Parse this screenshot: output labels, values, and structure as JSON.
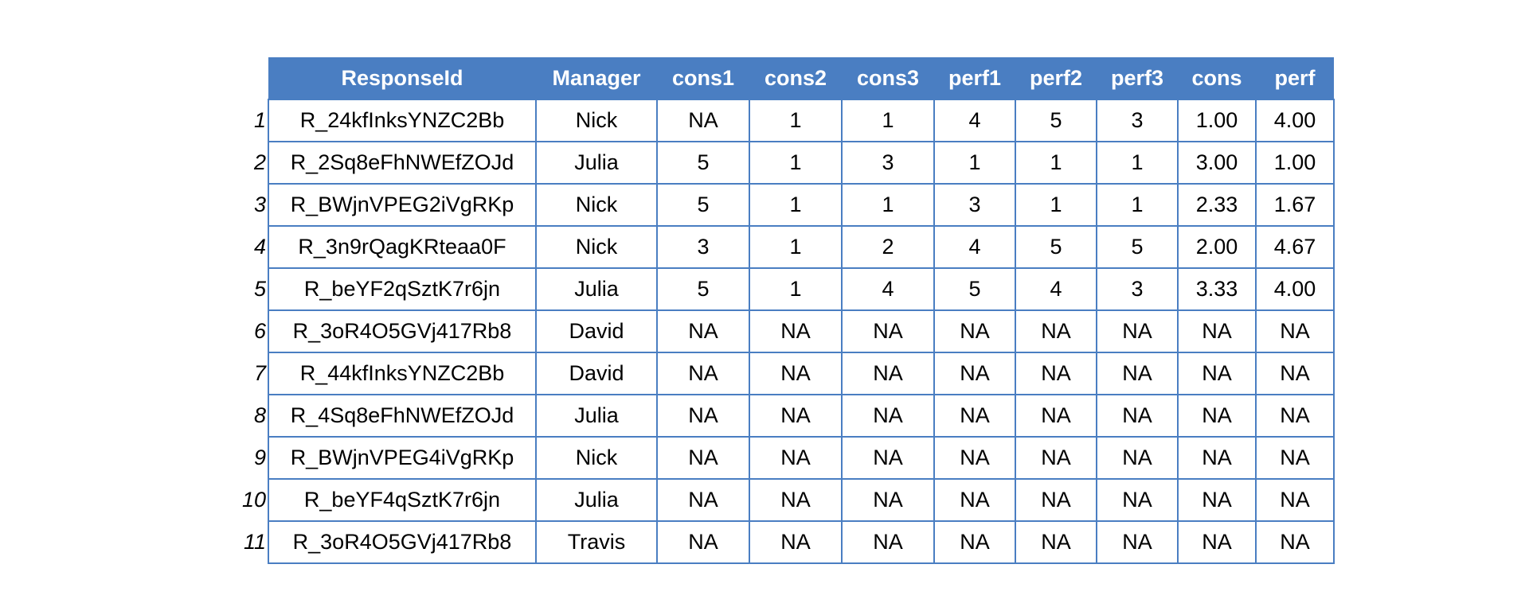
{
  "table": {
    "columns": [
      "ResponseId",
      "Manager",
      "cons1",
      "cons2",
      "cons3",
      "perf1",
      "perf2",
      "perf3",
      "cons",
      "perf"
    ],
    "rows": [
      {
        "num": "1",
        "cells": [
          "R_24kfInksYNZC2Bb",
          "Nick",
          "NA",
          "1",
          "1",
          "4",
          "5",
          "3",
          "1.00",
          "4.00"
        ]
      },
      {
        "num": "2",
        "cells": [
          "R_2Sq8eFhNWEfZOJd",
          "Julia",
          "5",
          "1",
          "3",
          "1",
          "1",
          "1",
          "3.00",
          "1.00"
        ]
      },
      {
        "num": "3",
        "cells": [
          "R_BWjnVPEG2iVgRKp",
          "Nick",
          "5",
          "1",
          "1",
          "3",
          "1",
          "1",
          "2.33",
          "1.67"
        ]
      },
      {
        "num": "4",
        "cells": [
          "R_3n9rQagKRteaa0F",
          "Nick",
          "3",
          "1",
          "2",
          "4",
          "5",
          "5",
          "2.00",
          "4.67"
        ]
      },
      {
        "num": "5",
        "cells": [
          "R_beYF2qSztK7r6jn",
          "Julia",
          "5",
          "1",
          "4",
          "5",
          "4",
          "3",
          "3.33",
          "4.00"
        ]
      },
      {
        "num": "6",
        "cells": [
          "R_3oR4O5GVj417Rb8",
          "David",
          "NA",
          "NA",
          "NA",
          "NA",
          "NA",
          "NA",
          "NA",
          "NA"
        ]
      },
      {
        "num": "7",
        "cells": [
          "R_44kfInksYNZC2Bb",
          "David",
          "NA",
          "NA",
          "NA",
          "NA",
          "NA",
          "NA",
          "NA",
          "NA"
        ]
      },
      {
        "num": "8",
        "cells": [
          "R_4Sq8eFhNWEfZOJd",
          "Julia",
          "NA",
          "NA",
          "NA",
          "NA",
          "NA",
          "NA",
          "NA",
          "NA"
        ]
      },
      {
        "num": "9",
        "cells": [
          "R_BWjnVPEG4iVgRKp",
          "Nick",
          "NA",
          "NA",
          "NA",
          "NA",
          "NA",
          "NA",
          "NA",
          "NA"
        ]
      },
      {
        "num": "10",
        "cells": [
          "R_beYF4qSztK7r6jn",
          "Julia",
          "NA",
          "NA",
          "NA",
          "NA",
          "NA",
          "NA",
          "NA",
          "NA"
        ]
      },
      {
        "num": "11",
        "cells": [
          "R_3oR4O5GVj417Rb8",
          "Travis",
          "NA",
          "NA",
          "NA",
          "NA",
          "NA",
          "NA",
          "NA",
          "NA"
        ]
      }
    ]
  },
  "colors": {
    "header_bg": "#4a7ec2",
    "header_text": "#ffffff",
    "border": "#4a7ec2"
  }
}
